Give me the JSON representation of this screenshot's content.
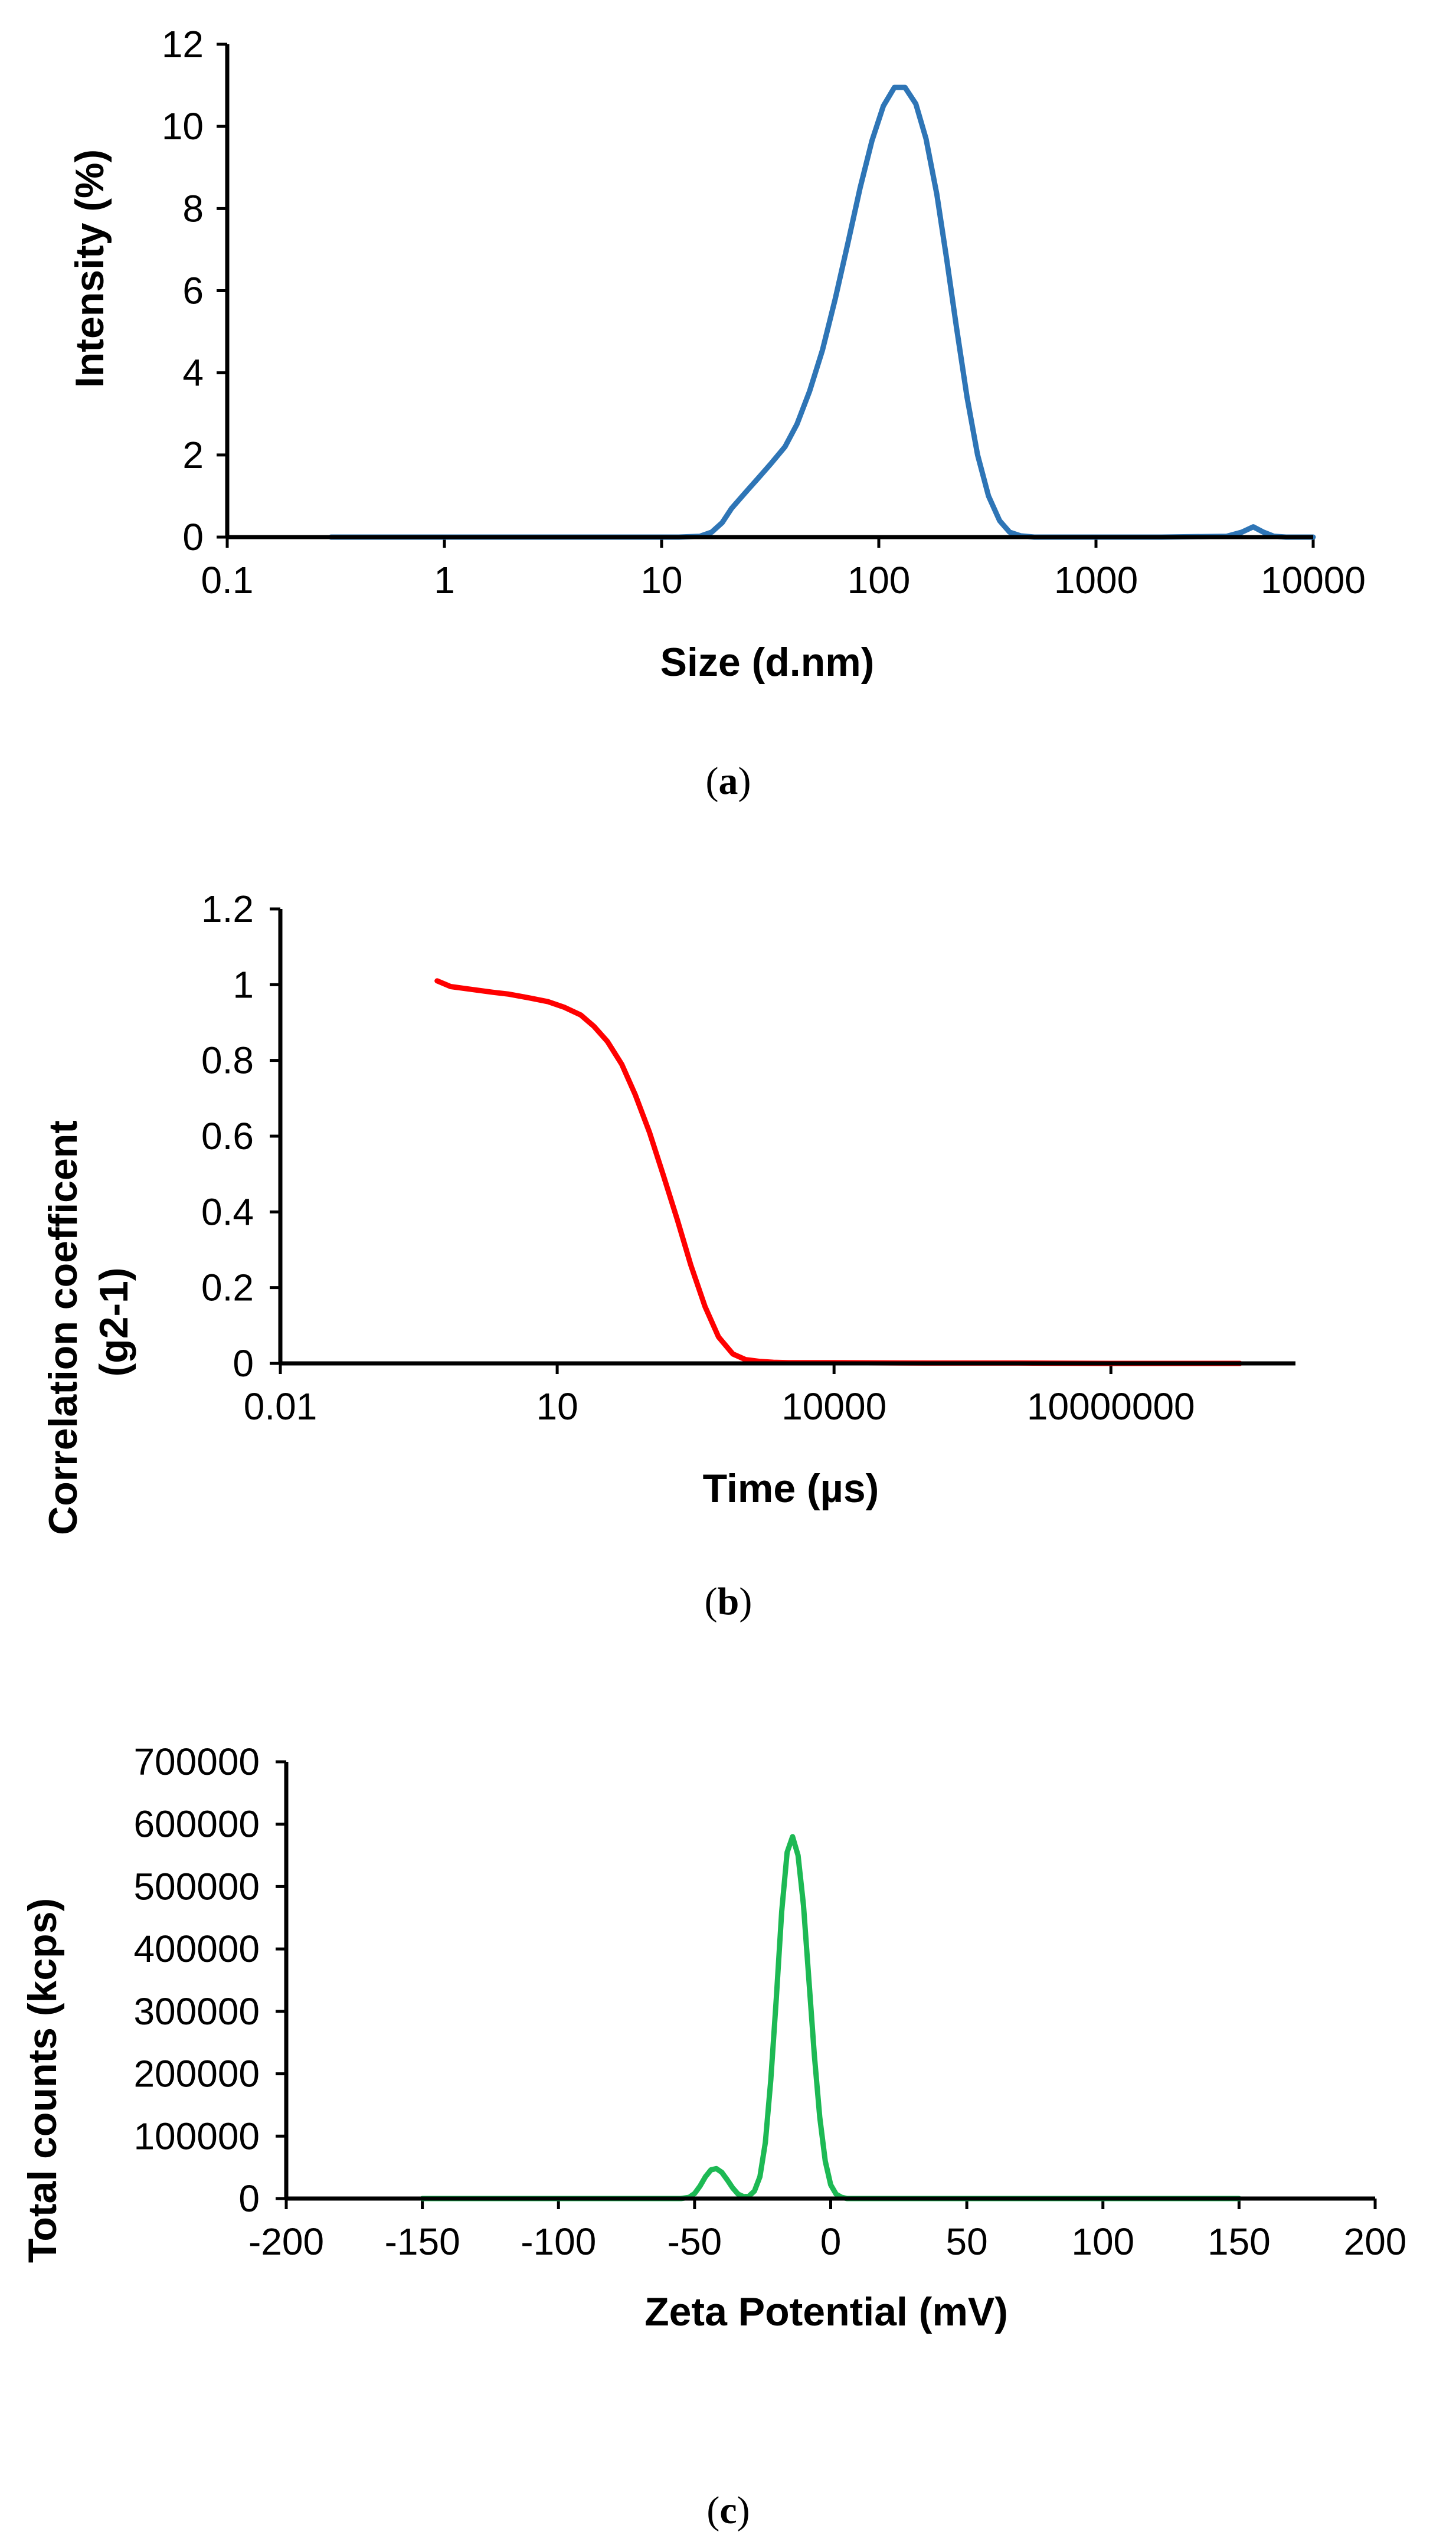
{
  "chart_data": [
    {
      "id": "a",
      "type": "line",
      "caption_letter": "a",
      "xlabel": "Size (d.nm)",
      "ylabel": "Intensity (%)",
      "xscale": "log",
      "xlim": [
        0.1,
        10000
      ],
      "ylim": [
        0,
        12
      ],
      "xticks": [
        "0.1",
        "1",
        "10",
        "100",
        "1000",
        "10000"
      ],
      "xtick_values": [
        0.1,
        1,
        10,
        100,
        1000,
        10000
      ],
      "yticks": [
        "0",
        "2",
        "4",
        "6",
        "8",
        "10",
        "12"
      ],
      "ytick_values": [
        0,
        2,
        4,
        6,
        8,
        10,
        12
      ],
      "grid": false,
      "color": "#2E75B6",
      "series": [
        {
          "name": "Intensity",
          "x": [
            0.3,
            1,
            5,
            12,
            15,
            17,
            19,
            21,
            24,
            28,
            32,
            37,
            42,
            48,
            55,
            63,
            72,
            82,
            93,
            105,
            118,
            132,
            148,
            165,
            185,
            205,
            228,
            255,
            285,
            320,
            360,
            400,
            450,
            520,
            700,
            2000,
            4000,
            4700,
            5300,
            5900,
            6600,
            7500,
            10000
          ],
          "y": [
            0,
            0,
            0,
            0,
            0.02,
            0.12,
            0.35,
            0.7,
            1.05,
            1.45,
            1.8,
            2.2,
            2.75,
            3.55,
            4.55,
            5.8,
            7.15,
            8.5,
            9.65,
            10.5,
            10.95,
            10.95,
            10.55,
            9.7,
            8.35,
            6.8,
            5.1,
            3.4,
            2.0,
            1.0,
            0.4,
            0.12,
            0.03,
            0,
            0,
            0,
            0.02,
            0.12,
            0.25,
            0.12,
            0.02,
            0,
            0
          ]
        }
      ]
    },
    {
      "id": "b",
      "type": "line",
      "caption_letter": "b",
      "xlabel": "Time (µs)",
      "ylabel_lines": [
        "Correlation coefficent",
        "(g2-1)"
      ],
      "xscale": "log",
      "xlim": [
        0.01,
        1000000000
      ],
      "ylim": [
        0,
        1.2
      ],
      "xticks": [
        "0.01",
        "10",
        "10000",
        "10000000"
      ],
      "xtick_values": [
        0.01,
        10,
        10000,
        10000000
      ],
      "yticks": [
        "0",
        "0.2",
        "0.4",
        "0.6",
        "0.8",
        "1",
        "1.2"
      ],
      "ytick_values": [
        0,
        0.2,
        0.4,
        0.6,
        0.8,
        1,
        1.2
      ],
      "grid": false,
      "color": "#FF0000",
      "series": [
        {
          "name": "Correlation",
          "x": [
            0.5,
            0.7,
            1,
            2,
            3,
            5,
            8,
            12,
            18,
            25,
            35,
            50,
            70,
            100,
            140,
            200,
            280,
            400,
            560,
            800,
            1100,
            1600,
            2200,
            3200,
            4500,
            6500,
            10000,
            100000,
            1000000,
            10000000,
            100000000,
            250000000
          ],
          "y": [
            1.01,
            0.995,
            0.99,
            0.98,
            0.975,
            0.965,
            0.955,
            0.94,
            0.92,
            0.89,
            0.85,
            0.79,
            0.71,
            0.61,
            0.5,
            0.38,
            0.26,
            0.15,
            0.07,
            0.025,
            0.01,
            0.005,
            0.003,
            0.002,
            0.002,
            0.002,
            0.002,
            0.001,
            0.001,
            0,
            0,
            0
          ]
        }
      ]
    },
    {
      "id": "c",
      "type": "line",
      "caption_letter": "c",
      "xlabel": "Zeta Potential (mV)",
      "ylabel": "Total counts (kcps)",
      "xscale": "linear",
      "xlim": [
        -200,
        200
      ],
      "ylim": [
        0,
        700000
      ],
      "xticks": [
        "-200",
        "-150",
        "-100",
        "-50",
        "0",
        "50",
        "100",
        "150",
        "200"
      ],
      "xtick_values": [
        -200,
        -150,
        -100,
        -50,
        0,
        50,
        100,
        150,
        200
      ],
      "yticks": [
        "0",
        "100000",
        "200000",
        "300000",
        "400000",
        "500000",
        "600000",
        "700000"
      ],
      "ytick_values": [
        0,
        100000,
        200000,
        300000,
        400000,
        500000,
        600000,
        700000
      ],
      "grid": false,
      "color": "#1DB954",
      "series": [
        {
          "name": "Total counts",
          "x": [
            -150,
            -100,
            -60,
            -55,
            -52,
            -50,
            -48,
            -46,
            -44,
            -42,
            -40,
            -38,
            -36,
            -34,
            -32,
            -30,
            -28,
            -26,
            -24,
            -22,
            -20,
            -18,
            -16,
            -14,
            -12,
            -10,
            -8,
            -6,
            -4,
            -2,
            0,
            2,
            4,
            6,
            10,
            50,
            100,
            150
          ],
          "y": [
            0,
            0,
            0,
            0,
            2000,
            8000,
            20000,
            35000,
            46000,
            48000,
            42000,
            30000,
            17000,
            7000,
            3000,
            4000,
            12000,
            35000,
            90000,
            190000,
            320000,
            460000,
            555000,
            580000,
            550000,
            470000,
            350000,
            230000,
            130000,
            60000,
            22000,
            7000,
            2000,
            0,
            0,
            0,
            0,
            0
          ]
        }
      ]
    }
  ]
}
